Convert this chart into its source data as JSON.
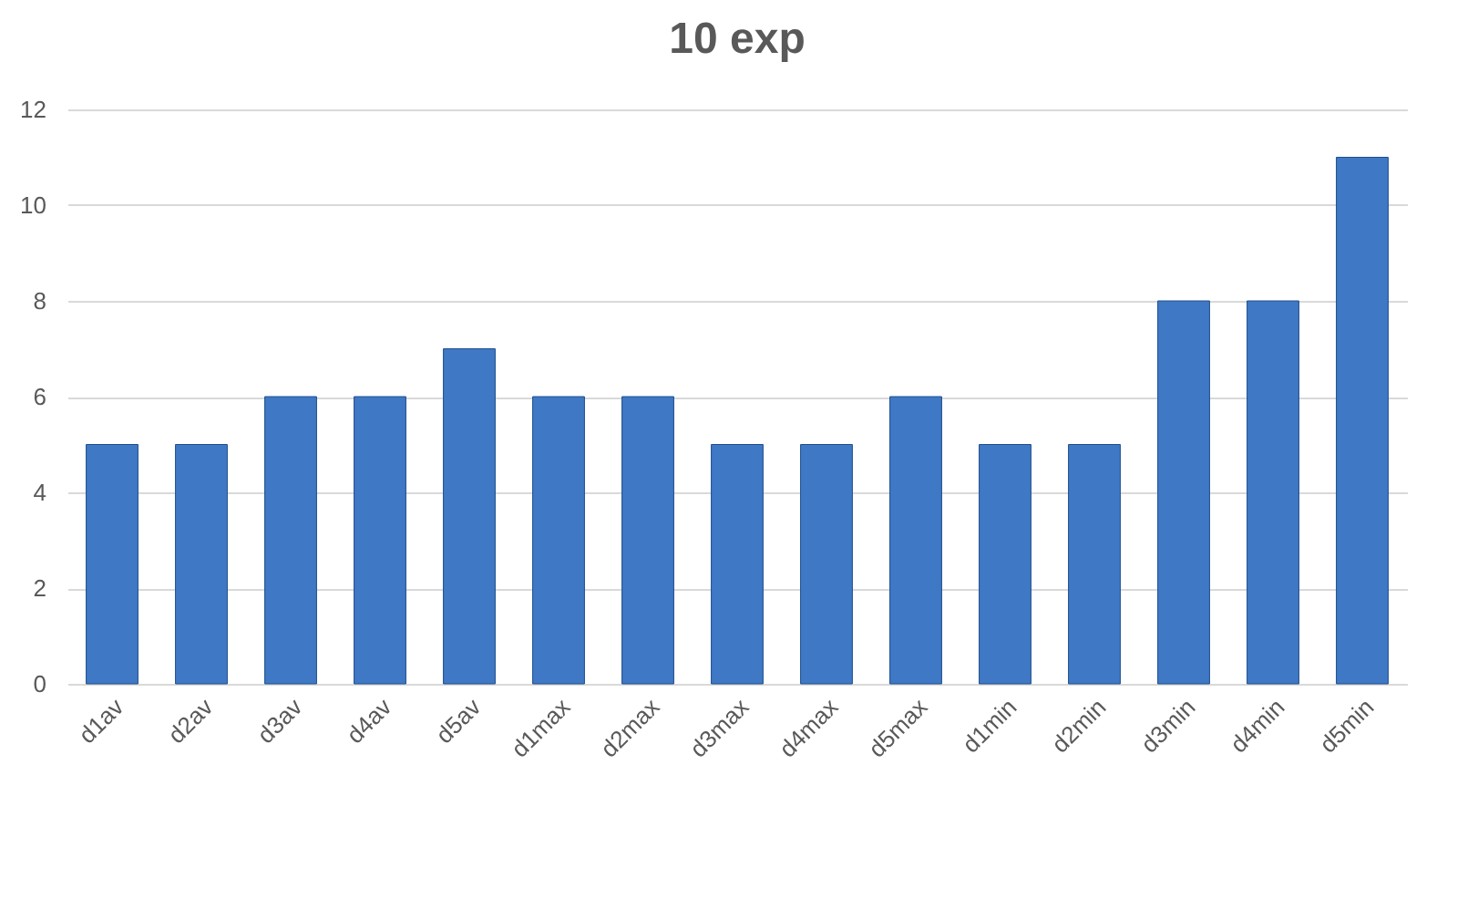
{
  "chart_data": {
    "type": "bar",
    "title": "10 exp",
    "categories": [
      "d1av",
      "d2av",
      "d3av",
      "d4av",
      "d5av",
      "d1max",
      "d2max",
      "d3max",
      "d4max",
      "d5max",
      "d1min",
      "d2min",
      "d3min",
      "d4min",
      "d5min"
    ],
    "values": [
      5,
      5,
      6,
      6,
      7,
      6,
      6,
      5,
      5,
      6,
      5,
      5,
      8,
      8,
      11
    ],
    "color": "#3f78c4",
    "ylim": [
      0,
      12
    ],
    "yticks": [
      0,
      2,
      4,
      6,
      8,
      10,
      12
    ],
    "grid": "y"
  }
}
